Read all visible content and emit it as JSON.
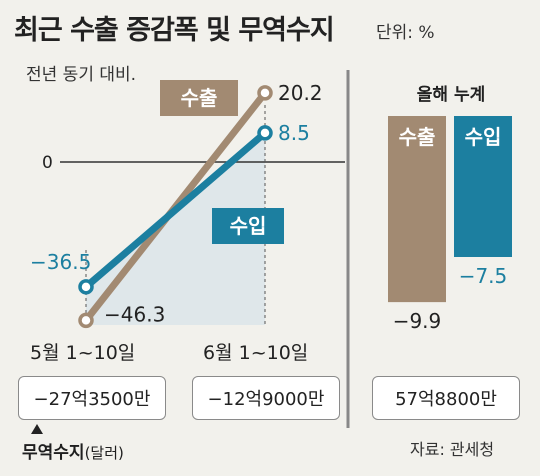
{
  "title": "최근 수출 증감폭 및 무역수지",
  "unit": "단위: %",
  "subtitle": "전년 동기 대비.",
  "source": "자료: 관세청",
  "colors": {
    "export": "#a28a72",
    "import": "#1c7fa0",
    "shade": "#dfe7ea",
    "background": "#f2f1ec"
  },
  "chart_data": [
    {
      "type": "line",
      "x": [
        "5월 1~10일",
        "6월 1~10일"
      ],
      "zero_label": "0",
      "ylim": [
        -50,
        25
      ],
      "series": [
        {
          "name": "수출",
          "values": [
            -46.3,
            20.2
          ],
          "value_labels": [
            "−46.3",
            "20.2"
          ]
        },
        {
          "name": "수입",
          "values": [
            -36.5,
            8.5
          ],
          "value_labels": [
            "−36.5",
            "8.5"
          ]
        }
      ]
    },
    {
      "type": "bar",
      "title": "올해 누계",
      "categories": [
        "수출",
        "수입"
      ],
      "values": [
        -9.9,
        -7.5
      ],
      "value_labels": [
        "−9.9",
        "−7.5"
      ]
    }
  ],
  "trade_balance": {
    "label": "무역수지",
    "label_unit": "(달러)",
    "values": [
      "−27억3500만",
      "−12억9000만",
      "57억8800만"
    ]
  }
}
